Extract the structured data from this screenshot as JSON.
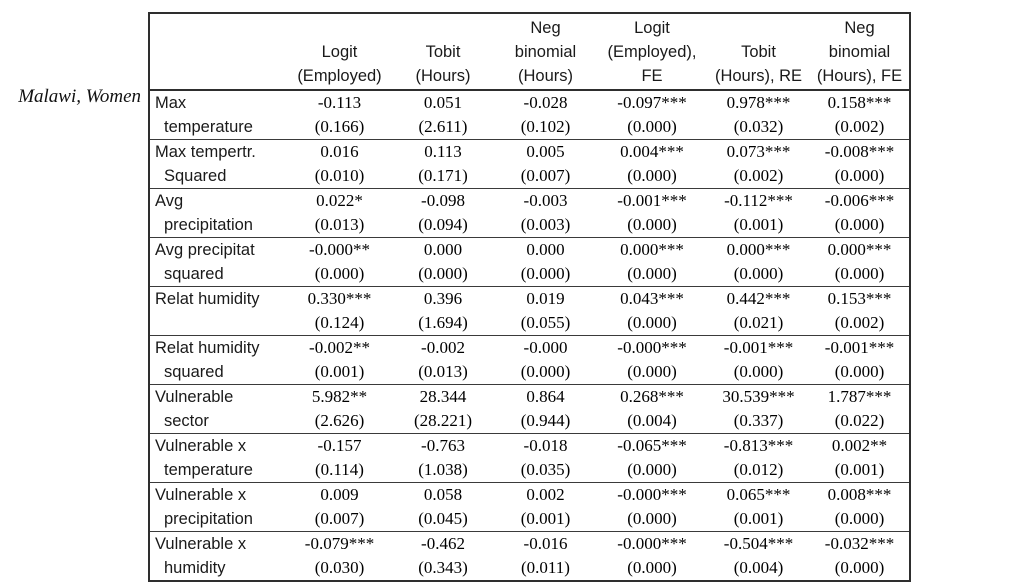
{
  "page": {
    "row_group_label": "Malawi, Women"
  },
  "table": {
    "columns": [
      {
        "id": "logit-employed",
        "lines": [
          "Logit",
          "(Employed)"
        ]
      },
      {
        "id": "tobit-hours",
        "lines": [
          "Tobit",
          "(Hours)"
        ]
      },
      {
        "id": "neg-binomial-hours",
        "lines": [
          "Neg",
          "binomial",
          "(Hours)"
        ]
      },
      {
        "id": "logit-employed-fe",
        "lines": [
          "Logit",
          "(Employed),",
          "FE"
        ]
      },
      {
        "id": "tobit-hours-re",
        "lines": [
          "Tobit",
          "(Hours), RE"
        ]
      },
      {
        "id": "neg-binomial-hours-fe",
        "lines": [
          "Neg",
          "binomial",
          "(Hours), FE"
        ]
      }
    ],
    "rows": [
      {
        "label": [
          "Max",
          "temperature"
        ],
        "cells": [
          [
            "-0.113",
            "(0.166)"
          ],
          [
            "0.051",
            "(2.611)"
          ],
          [
            "-0.028",
            "(0.102)"
          ],
          [
            "-0.097***",
            "(0.000)"
          ],
          [
            "0.978***",
            "(0.032)"
          ],
          [
            "0.158***",
            "(0.002)"
          ]
        ]
      },
      {
        "label": [
          "Max tempertr.",
          "Squared"
        ],
        "cells": [
          [
            "0.016",
            "(0.010)"
          ],
          [
            "0.113",
            "(0.171)"
          ],
          [
            "0.005",
            "(0.007)"
          ],
          [
            "0.004***",
            "(0.000)"
          ],
          [
            "0.073***",
            "(0.002)"
          ],
          [
            "-0.008***",
            "(0.000)"
          ]
        ]
      },
      {
        "label": [
          "Avg",
          "precipitation"
        ],
        "cells": [
          [
            "0.022*",
            "(0.013)"
          ],
          [
            "-0.098",
            "(0.094)"
          ],
          [
            "-0.003",
            "(0.003)"
          ],
          [
            "-0.001***",
            "(0.000)"
          ],
          [
            "-0.112***",
            "(0.001)"
          ],
          [
            "-0.006***",
            "(0.000)"
          ]
        ]
      },
      {
        "label": [
          "Avg precipitat",
          "squared"
        ],
        "cells": [
          [
            "-0.000**",
            "(0.000)"
          ],
          [
            "0.000",
            "(0.000)"
          ],
          [
            "0.000",
            "(0.000)"
          ],
          [
            "0.000***",
            "(0.000)"
          ],
          [
            "0.000***",
            "(0.000)"
          ],
          [
            "0.000***",
            "(0.000)"
          ]
        ]
      },
      {
        "label": [
          "Relat humidity",
          ""
        ],
        "cells": [
          [
            "0.330***",
            "(0.124)"
          ],
          [
            "0.396",
            "(1.694)"
          ],
          [
            "0.019",
            "(0.055)"
          ],
          [
            "0.043***",
            "(0.000)"
          ],
          [
            "0.442***",
            "(0.021)"
          ],
          [
            "0.153***",
            "(0.002)"
          ]
        ]
      },
      {
        "label": [
          "Relat humidity",
          "squared"
        ],
        "cells": [
          [
            "-0.002**",
            "(0.001)"
          ],
          [
            "-0.002",
            "(0.013)"
          ],
          [
            "-0.000",
            "(0.000)"
          ],
          [
            "-0.000***",
            "(0.000)"
          ],
          [
            "-0.001***",
            "(0.000)"
          ],
          [
            "-0.001***",
            "(0.000)"
          ]
        ]
      },
      {
        "label": [
          "Vulnerable",
          "sector"
        ],
        "cells": [
          [
            "5.982**",
            "(2.626)"
          ],
          [
            "28.344",
            "(28.221)"
          ],
          [
            "0.864",
            "(0.944)"
          ],
          [
            "0.268***",
            "(0.004)"
          ],
          [
            "30.539***",
            "(0.337)"
          ],
          [
            "1.787***",
            "(0.022)"
          ]
        ]
      },
      {
        "label": [
          "Vulnerable x",
          "temperature"
        ],
        "cells": [
          [
            "-0.157",
            "(0.114)"
          ],
          [
            "-0.763",
            "(1.038)"
          ],
          [
            "-0.018",
            "(0.035)"
          ],
          [
            "-0.065***",
            "(0.000)"
          ],
          [
            "-0.813***",
            "(0.012)"
          ],
          [
            "0.002**",
            "(0.001)"
          ]
        ]
      },
      {
        "label": [
          "Vulnerable x",
          "precipitation"
        ],
        "cells": [
          [
            "0.009",
            "(0.007)"
          ],
          [
            "0.058",
            "(0.045)"
          ],
          [
            "0.002",
            "(0.001)"
          ],
          [
            "-0.000***",
            "(0.000)"
          ],
          [
            "0.065***",
            "(0.001)"
          ],
          [
            "0.008***",
            "(0.000)"
          ]
        ]
      },
      {
        "label": [
          "Vulnerable x",
          "humidity"
        ],
        "cells": [
          [
            "-0.079***",
            "(0.030)"
          ],
          [
            "-0.462",
            "(0.343)"
          ],
          [
            "-0.016",
            "(0.011)"
          ],
          [
            "-0.000***",
            "(0.000)"
          ],
          [
            "-0.504***",
            "(0.004)"
          ],
          [
            "-0.032***",
            "(0.000)"
          ]
        ]
      }
    ]
  }
}
